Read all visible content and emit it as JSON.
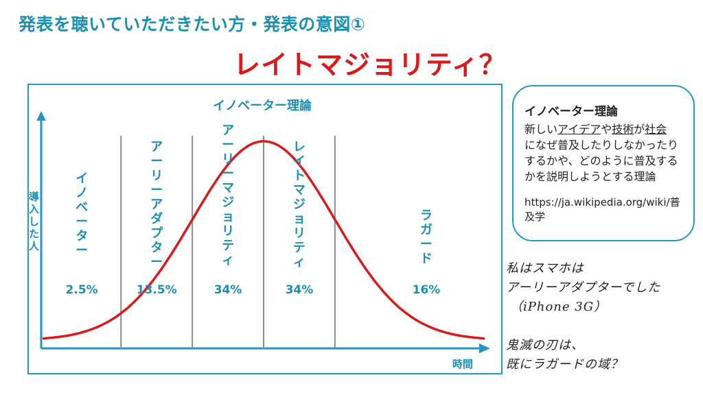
{
  "header": {
    "title": "発表を聴いていただきたい方・発表の意図①",
    "subtitle": "レイトマジョリティ？"
  },
  "colors": {
    "accent": "#2596c4",
    "curve": "#d91a1a",
    "label": "#1a8fb0",
    "divider": "#8a8a8a"
  },
  "chart_data": {
    "type": "area",
    "title": "イノベーター理論",
    "xlabel": "時間",
    "ylabel": "導入した人",
    "segments": [
      {
        "name": "イノベーター",
        "percent": "2.5%"
      },
      {
        "name": "アーリーアダプター",
        "percent": "13.5%"
      },
      {
        "name": "アーリーマジョリティ",
        "percent": "34%"
      },
      {
        "name": "レイトマジョリティ",
        "percent": "34%"
      },
      {
        "name": "ラガード",
        "percent": "16%"
      }
    ],
    "boundaries_sd": [
      -2,
      -1,
      0,
      1
    ],
    "distribution": "normal",
    "x_range_sd": [
      -3.1,
      3.1
    ],
    "grid": false,
    "legend": "none"
  },
  "note": {
    "title": "イノベーター理論",
    "line1_pre": "新しい",
    "line1_u1": "アイデア",
    "line1_mid": "や",
    "line1_u2": "技術",
    "line1_mid2": "が",
    "line1_u3": "社会",
    "line2": "になぜ普及したりしなかったり",
    "line3": "するかや、どのように普及する",
    "line4": "かを説明しようとする理論",
    "url": "https://ja.wikipedia.org/wiki/普及学"
  },
  "handwritten": {
    "line1": "私はスマホは",
    "line2": "アーリーアダプターでした",
    "line3": "（iPhone 3G）",
    "line4": "鬼滅の刃は、",
    "line5": "既にラガードの域？"
  }
}
